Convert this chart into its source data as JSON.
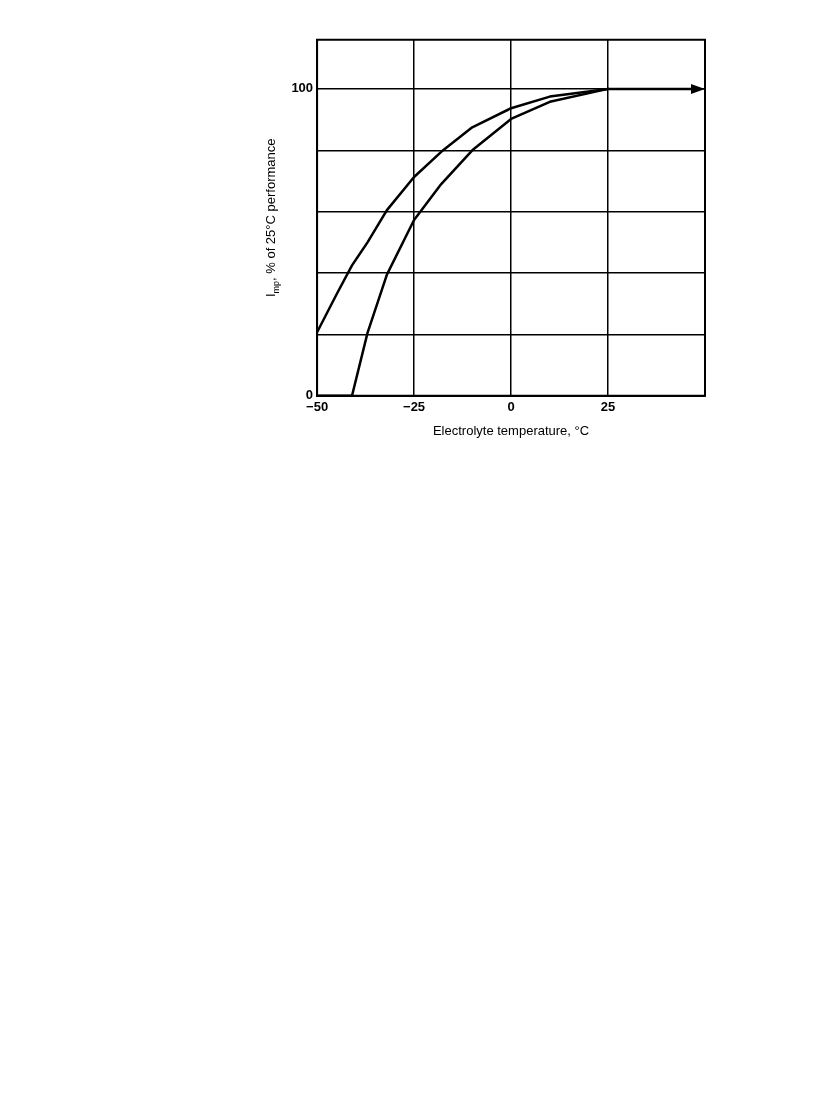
{
  "chart_data": {
    "type": "line",
    "xlabel": "Electrolyte temperature, °C",
    "ylabel": "I$_{mp}$, % of 25°C performance",
    "xlim": [
      -50,
      50
    ],
    "xticks": [
      {
        "value": -50,
        "label": "−50"
      },
      {
        "value": -25,
        "label": "−25"
      },
      0,
      25,
      {
        "value": 50,
        "label": null
      }
    ],
    "ylim": [
      0,
      116
    ],
    "yticks": [
      0,
      {
        "value": 20,
        "label": null
      },
      {
        "value": 40,
        "label": null
      },
      {
        "value": 60,
        "label": null
      },
      {
        "value": 80,
        "label": null
      },
      100
    ],
    "grid": true,
    "legend": false,
    "marker": "none",
    "line_style": "solid",
    "series": [
      {
        "type": "line",
        "color": "#000000",
        "x": [
          -50,
          -45,
          -41,
          -37,
          -32,
          -25,
          -18,
          -10,
          0,
          10,
          25
        ],
        "values": [
          20.7,
          33,
          42.5,
          50,
          60.5,
          71.3,
          79.5,
          87.5,
          93.7,
          97.5,
          100
        ]
      },
      {
        "type": "line",
        "color": "#000000",
        "x": [
          -50,
          -45,
          -41,
          -37,
          -32,
          -25,
          -18,
          -10,
          0,
          10,
          25
        ],
        "values": [
          0,
          0,
          0,
          20.5,
          39.5,
          57.3,
          69,
          80,
          90.2,
          95.8,
          100
        ]
      }
    ]
  }
}
